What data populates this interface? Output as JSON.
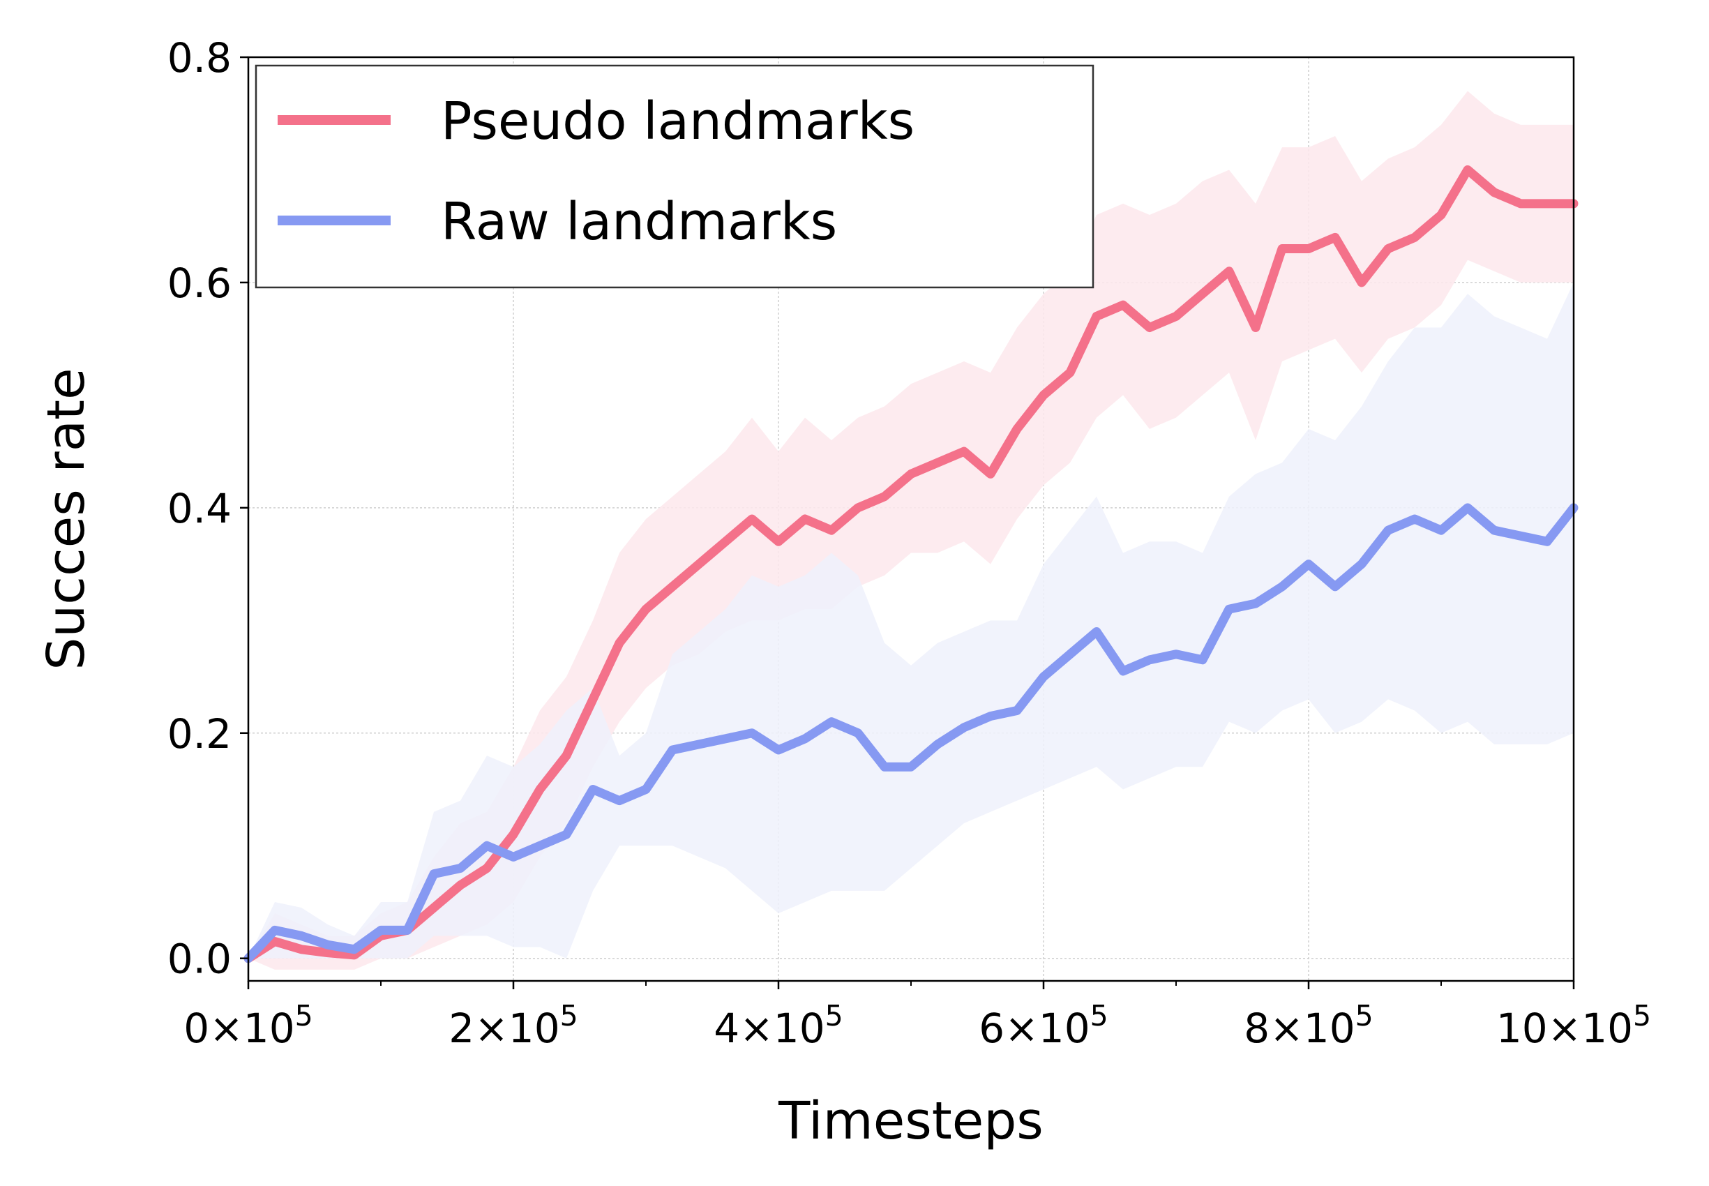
{
  "chart_data": {
    "type": "line",
    "xlabel": "Timesteps",
    "ylabel": "Succes rate",
    "xlim": [
      0,
      1000000
    ],
    "ylim": [
      -0.02,
      0.8
    ],
    "x_ticks": [
      {
        "value": 0,
        "mantissa": "0",
        "base": "×10",
        "exp": "5"
      },
      {
        "value": 200000,
        "mantissa": "2",
        "base": "×10",
        "exp": "5"
      },
      {
        "value": 400000,
        "mantissa": "4",
        "base": "×10",
        "exp": "5"
      },
      {
        "value": 600000,
        "mantissa": "6",
        "base": "×10",
        "exp": "5"
      },
      {
        "value": 800000,
        "mantissa": "8",
        "base": "×10",
        "exp": "5"
      },
      {
        "value": 1000000,
        "mantissa": "10",
        "base": "×10",
        "exp": "5"
      }
    ],
    "x_minor_ticks": [
      100000,
      300000,
      500000,
      700000,
      900000
    ],
    "y_ticks": [
      {
        "value": 0.0,
        "label": "0.0"
      },
      {
        "value": 0.2,
        "label": "0.2"
      },
      {
        "value": 0.4,
        "label": "0.4"
      },
      {
        "value": 0.6,
        "label": "0.6"
      },
      {
        "value": 0.8,
        "label": "0.8"
      }
    ],
    "grid": true,
    "legend_position": "top-left",
    "series": [
      {
        "name": "Pseudo landmarks",
        "color": "#F4718A",
        "band_color": "#FDE8EC",
        "x": [
          0,
          20000,
          40000,
          60000,
          80000,
          100000,
          120000,
          140000,
          160000,
          180000,
          200000,
          220000,
          240000,
          260000,
          280000,
          300000,
          320000,
          340000,
          360000,
          380000,
          400000,
          420000,
          440000,
          460000,
          480000,
          500000,
          520000,
          540000,
          560000,
          580000,
          600000,
          620000,
          640000,
          660000,
          680000,
          700000,
          720000,
          740000,
          760000,
          780000,
          800000,
          820000,
          840000,
          860000,
          880000,
          900000,
          920000,
          940000,
          960000,
          980000,
          1000000
        ],
        "values": [
          0.0,
          0.015,
          0.008,
          0.005,
          0.003,
          0.02,
          0.025,
          0.045,
          0.065,
          0.08,
          0.11,
          0.15,
          0.18,
          0.23,
          0.28,
          0.31,
          0.33,
          0.35,
          0.37,
          0.39,
          0.37,
          0.39,
          0.38,
          0.4,
          0.41,
          0.43,
          0.44,
          0.45,
          0.43,
          0.47,
          0.5,
          0.52,
          0.57,
          0.58,
          0.56,
          0.57,
          0.59,
          0.61,
          0.56,
          0.63,
          0.63,
          0.64,
          0.6,
          0.63,
          0.64,
          0.66,
          0.7,
          0.68,
          0.67,
          0.67,
          0.67
        ],
        "band_lower": [
          0.0,
          -0.01,
          -0.01,
          -0.01,
          -0.01,
          0.0,
          0.0,
          0.01,
          0.02,
          0.03,
          0.05,
          0.09,
          0.12,
          0.17,
          0.21,
          0.24,
          0.26,
          0.27,
          0.29,
          0.3,
          0.3,
          0.31,
          0.31,
          0.33,
          0.34,
          0.36,
          0.36,
          0.37,
          0.35,
          0.39,
          0.42,
          0.44,
          0.48,
          0.5,
          0.47,
          0.48,
          0.5,
          0.52,
          0.46,
          0.53,
          0.54,
          0.55,
          0.52,
          0.55,
          0.56,
          0.58,
          0.62,
          0.61,
          0.6,
          0.6,
          0.6
        ],
        "band_upper": [
          0.0,
          0.04,
          0.03,
          0.02,
          0.02,
          0.04,
          0.05,
          0.09,
          0.12,
          0.13,
          0.17,
          0.22,
          0.25,
          0.3,
          0.36,
          0.39,
          0.41,
          0.43,
          0.45,
          0.48,
          0.45,
          0.48,
          0.46,
          0.48,
          0.49,
          0.51,
          0.52,
          0.53,
          0.52,
          0.56,
          0.59,
          0.61,
          0.66,
          0.67,
          0.66,
          0.67,
          0.69,
          0.7,
          0.67,
          0.72,
          0.72,
          0.73,
          0.69,
          0.71,
          0.72,
          0.74,
          0.77,
          0.75,
          0.74,
          0.74,
          0.74
        ]
      },
      {
        "name": "Raw landmarks",
        "color": "#8699F2",
        "band_color": "#EEF1FC",
        "x": [
          0,
          20000,
          40000,
          60000,
          80000,
          100000,
          120000,
          140000,
          160000,
          180000,
          200000,
          220000,
          240000,
          260000,
          280000,
          300000,
          320000,
          340000,
          360000,
          380000,
          400000,
          420000,
          440000,
          460000,
          480000,
          500000,
          520000,
          540000,
          560000,
          580000,
          600000,
          620000,
          640000,
          660000,
          680000,
          700000,
          720000,
          740000,
          760000,
          780000,
          800000,
          820000,
          840000,
          860000,
          880000,
          900000,
          920000,
          940000,
          960000,
          980000,
          1000000
        ],
        "values": [
          0.0,
          0.025,
          0.02,
          0.012,
          0.008,
          0.025,
          0.025,
          0.075,
          0.08,
          0.1,
          0.09,
          0.1,
          0.11,
          0.15,
          0.14,
          0.15,
          0.185,
          0.19,
          0.195,
          0.2,
          0.185,
          0.195,
          0.21,
          0.2,
          0.17,
          0.17,
          0.19,
          0.205,
          0.215,
          0.22,
          0.25,
          0.27,
          0.29,
          0.255,
          0.265,
          0.27,
          0.265,
          0.31,
          0.315,
          0.33,
          0.35,
          0.33,
          0.35,
          0.38,
          0.39,
          0.38,
          0.4,
          0.38,
          0.375,
          0.37,
          0.4
        ],
        "band_lower": [
          0.0,
          0.0,
          0.0,
          0.0,
          0.0,
          0.0,
          0.0,
          0.02,
          0.02,
          0.02,
          0.01,
          0.01,
          0.0,
          0.06,
          0.1,
          0.1,
          0.1,
          0.09,
          0.08,
          0.06,
          0.04,
          0.05,
          0.06,
          0.06,
          0.06,
          0.08,
          0.1,
          0.12,
          0.13,
          0.14,
          0.15,
          0.16,
          0.17,
          0.15,
          0.16,
          0.17,
          0.17,
          0.21,
          0.2,
          0.22,
          0.23,
          0.2,
          0.21,
          0.23,
          0.22,
          0.2,
          0.21,
          0.19,
          0.19,
          0.19,
          0.2
        ],
        "band_upper": [
          0.0,
          0.05,
          0.045,
          0.03,
          0.02,
          0.05,
          0.05,
          0.13,
          0.14,
          0.18,
          0.17,
          0.19,
          0.22,
          0.24,
          0.18,
          0.2,
          0.27,
          0.29,
          0.31,
          0.34,
          0.33,
          0.34,
          0.36,
          0.34,
          0.28,
          0.26,
          0.28,
          0.29,
          0.3,
          0.3,
          0.35,
          0.38,
          0.41,
          0.36,
          0.37,
          0.37,
          0.36,
          0.41,
          0.43,
          0.44,
          0.47,
          0.46,
          0.49,
          0.53,
          0.56,
          0.56,
          0.59,
          0.57,
          0.56,
          0.55,
          0.6
        ]
      }
    ]
  }
}
